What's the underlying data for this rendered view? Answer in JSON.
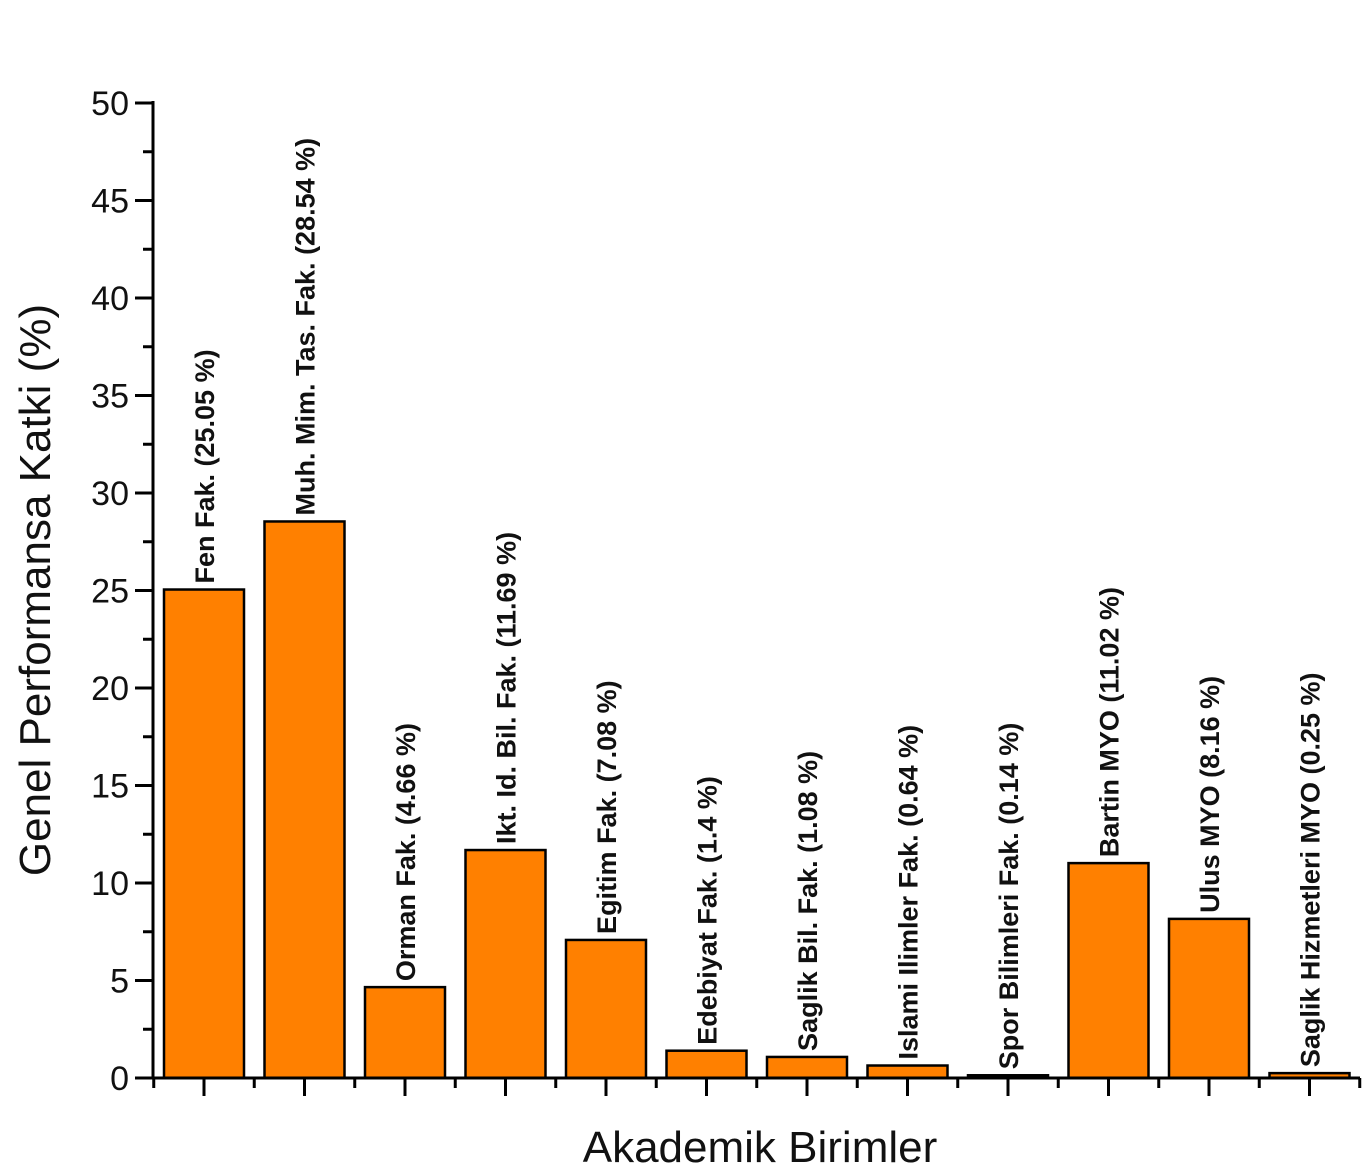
{
  "chart_data": {
    "type": "bar",
    "title": "",
    "xlabel": "Akademik Birimler",
    "ylabel": "Genel Performansa Katki (%)",
    "ylim": [
      0,
      50
    ],
    "yticks": [
      0,
      5,
      10,
      15,
      20,
      25,
      30,
      35,
      40,
      45,
      50
    ],
    "categories": [
      "Fen Fak.",
      "Muh. Mim. Tas. Fak.",
      "Orman Fak.",
      "Ikt. Id. Bil. Fak.",
      "Egitim Fak.",
      "Edebiyat Fak.",
      "Saglik Bil. Fak.",
      "Islami Ilimler Fak.",
      "Spor Bilimleri Fak.",
      "Bartin MYO",
      "Ulus MYO",
      "Saglik Hizmetleri MYO"
    ],
    "values": [
      25.05,
      28.54,
      4.66,
      11.69,
      7.08,
      1.4,
      1.08,
      0.64,
      0.14,
      11.02,
      8.16,
      0.25
    ],
    "bar_labels": [
      "Fen Fak. (25.05 %)",
      "Muh. Mim. Tas. Fak. (28.54 %)",
      "Orman Fak. (4.66 %)",
      "Ikt. Id. Bil. Fak. (11.69 %)",
      "Egitim Fak. (7.08 %)",
      "Edebiyat Fak. (1.4 %)",
      "Saglik Bil. Fak. (1.08 %)",
      "Islami Ilimler Fak. (0.64 %)",
      "Spor Bilimleri Fak. (0.14 %)",
      "Bartin MYO (11.02 %)",
      "Ulus MYO (8.16 %)",
      "Saglik Hizmetleri MYO (0.25 %)"
    ],
    "colors": {
      "bar_fill": "#FF8000",
      "bar_stroke": "#000000"
    },
    "grid": false,
    "legend": "none"
  }
}
